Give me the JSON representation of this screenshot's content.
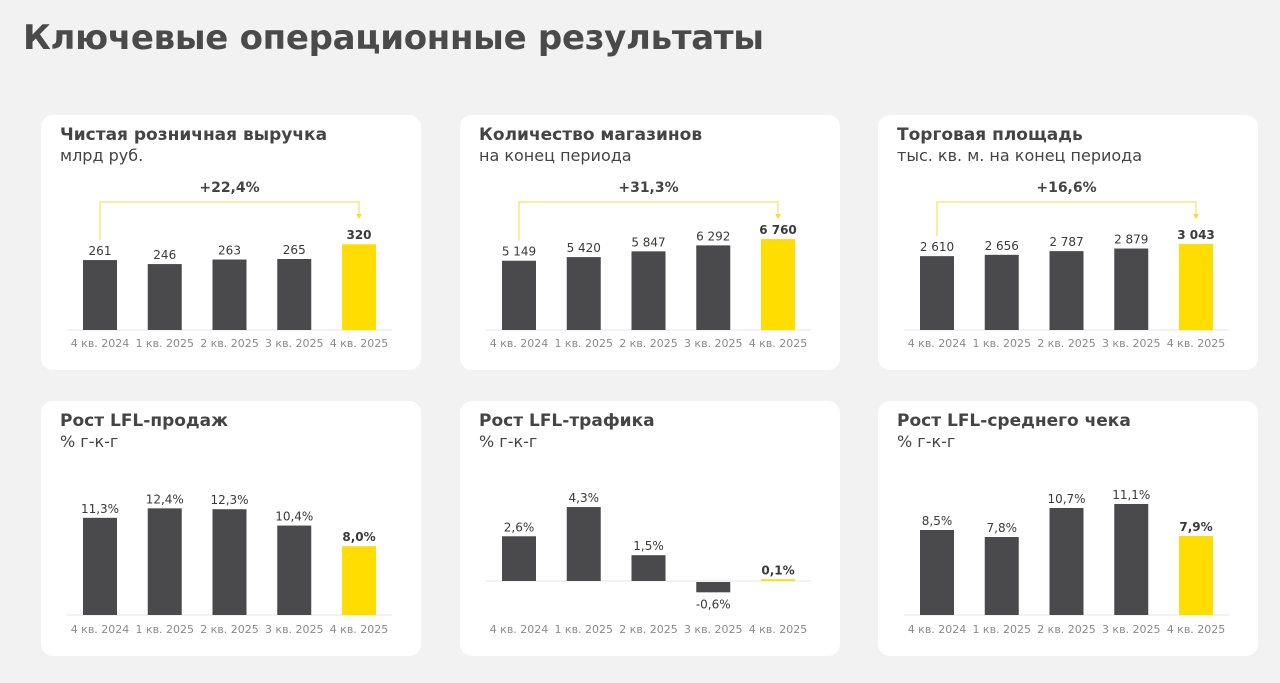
{
  "page_title": "Ключевые операционные результаты",
  "colors": {
    "bar": "#4a4a4c",
    "highlight": "#ffdd00",
    "bracket": "#f5dc3c",
    "background": "#f2f2f2"
  },
  "chart_data": [
    {
      "type": "bar",
      "title": "Чистая розничная выручка",
      "subtitle": "млрд руб.",
      "categories": [
        "4 кв. 2024",
        "1 кв. 2025",
        "2 кв. 2025",
        "3 кв. 2025",
        "4 кв. 2025"
      ],
      "values": [
        261,
        246,
        263,
        265,
        320
      ],
      "labels": [
        "261",
        "246",
        "263",
        "265",
        "320"
      ],
      "growth": "+22,4%"
    },
    {
      "type": "bar",
      "title": "Количество магазинов",
      "subtitle": "на конец периода",
      "categories": [
        "4 кв. 2024",
        "1 кв. 2025",
        "2 кв. 2025",
        "3 кв. 2025",
        "4 кв. 2025"
      ],
      "values": [
        5149,
        5420,
        5847,
        6292,
        6760
      ],
      "labels": [
        "5 149",
        "5 420",
        "5 847",
        "6 292",
        "6 760"
      ],
      "growth": "+31,3%"
    },
    {
      "type": "bar",
      "title": "Торговая площадь",
      "subtitle": "тыс. кв. м. на конец периода",
      "categories": [
        "4 кв. 2024",
        "1 кв. 2025",
        "2 кв. 2025",
        "3 кв. 2025",
        "4 кв. 2025"
      ],
      "values": [
        2610,
        2656,
        2787,
        2879,
        3043
      ],
      "labels": [
        "2 610",
        "2 656",
        "2 787",
        "2 879",
        "3 043"
      ],
      "growth": "+16,6%"
    },
    {
      "type": "bar",
      "title": "Рост LFL-продаж",
      "subtitle": "% г-к-г",
      "categories": [
        "4 кв. 2024",
        "1 кв. 2025",
        "2 кв. 2025",
        "3 кв. 2025",
        "4 кв. 2025"
      ],
      "values": [
        11.3,
        12.4,
        12.3,
        10.4,
        8.0
      ],
      "labels": [
        "11,3%",
        "12,4%",
        "12,3%",
        "10,4%",
        "8,0%"
      ]
    },
    {
      "type": "bar",
      "title": "Рост LFL-трафика",
      "subtitle": "% г-к-г",
      "categories": [
        "4 кв. 2024",
        "1 кв. 2025",
        "2 кв. 2025",
        "3 кв. 2025",
        "4 кв. 2025"
      ],
      "values": [
        2.6,
        4.3,
        1.5,
        -0.6,
        0.1
      ],
      "labels": [
        "2,6%",
        "4,3%",
        "1,5%",
        "-0,6%",
        "0,1%"
      ]
    },
    {
      "type": "bar",
      "title": "Рост LFL-среднего чека",
      "subtitle": "% г-к-г",
      "categories": [
        "4 кв. 2024",
        "1 кв. 2025",
        "2 кв. 2025",
        "3 кв. 2025",
        "4 кв. 2025"
      ],
      "values": [
        8.5,
        7.8,
        10.7,
        11.1,
        7.9
      ],
      "labels": [
        "8,5%",
        "7,8%",
        "10,7%",
        "11,1%",
        "7,9%"
      ]
    }
  ]
}
